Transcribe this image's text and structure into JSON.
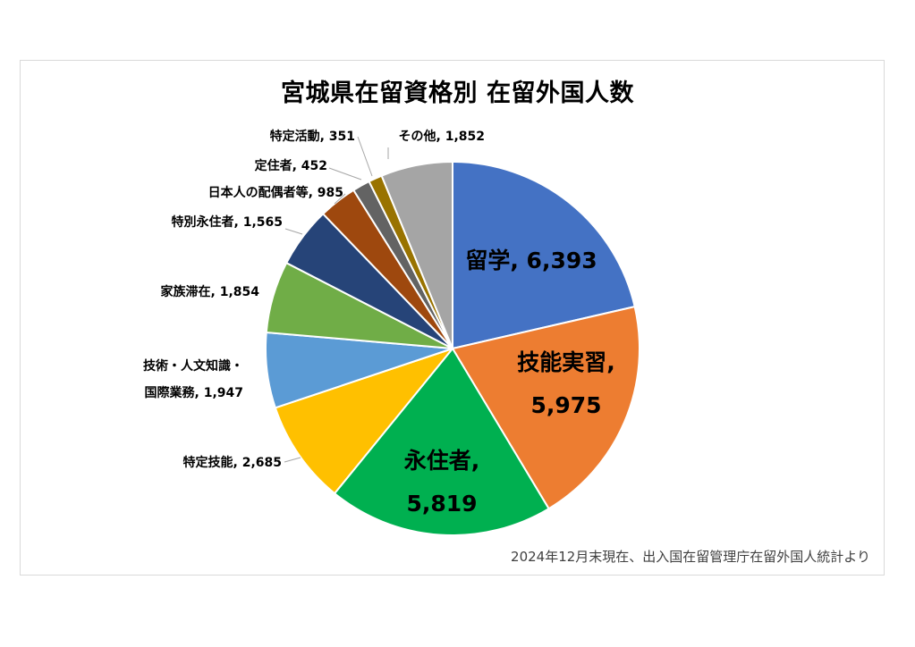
{
  "title": "宮城県在留資格別 在留外国人数",
  "source_note": "2024年12月末現在、出入国在留管理庁在留外国人統計より",
  "chart_data": {
    "type": "pie",
    "title": "宮城県在留資格別 在留外国人数",
    "slices": [
      {
        "label": "留学",
        "value": 6393,
        "display": "留学, 6,393",
        "color": "#4472C4"
      },
      {
        "label": "技能実習",
        "value": 5975,
        "display": "技能実習,|5,975",
        "color": "#ED7D31"
      },
      {
        "label": "永住者",
        "value": 5819,
        "display": "永住者,|5,819",
        "color": "#00B050"
      },
      {
        "label": "特定技能",
        "value": 2685,
        "display": "特定技能, 2,685",
        "color": "#FFC000"
      },
      {
        "label": "技術・人文知識・国際業務",
        "value": 1947,
        "display": "技術・人文知識・|国際業務, 1,947",
        "color": "#5B9BD5"
      },
      {
        "label": "家族滞在",
        "value": 1854,
        "display": "家族滞在, 1,854",
        "color": "#70AD47"
      },
      {
        "label": "特別永住者",
        "value": 1565,
        "display": "特別永住者, 1,565",
        "color": "#264478"
      },
      {
        "label": "日本人の配偶者等",
        "value": 985,
        "display": "日本人の配偶者等, 985",
        "color": "#9E480E"
      },
      {
        "label": "定住者",
        "value": 452,
        "display": "定住者, 452",
        "color": "#636363"
      },
      {
        "label": "特定活動",
        "value": 351,
        "display": "特定活動, 351",
        "color": "#997300"
      },
      {
        "label": "その他",
        "value": 1852,
        "display": "その他, 1,852",
        "color": "#A5A5A5"
      }
    ]
  }
}
